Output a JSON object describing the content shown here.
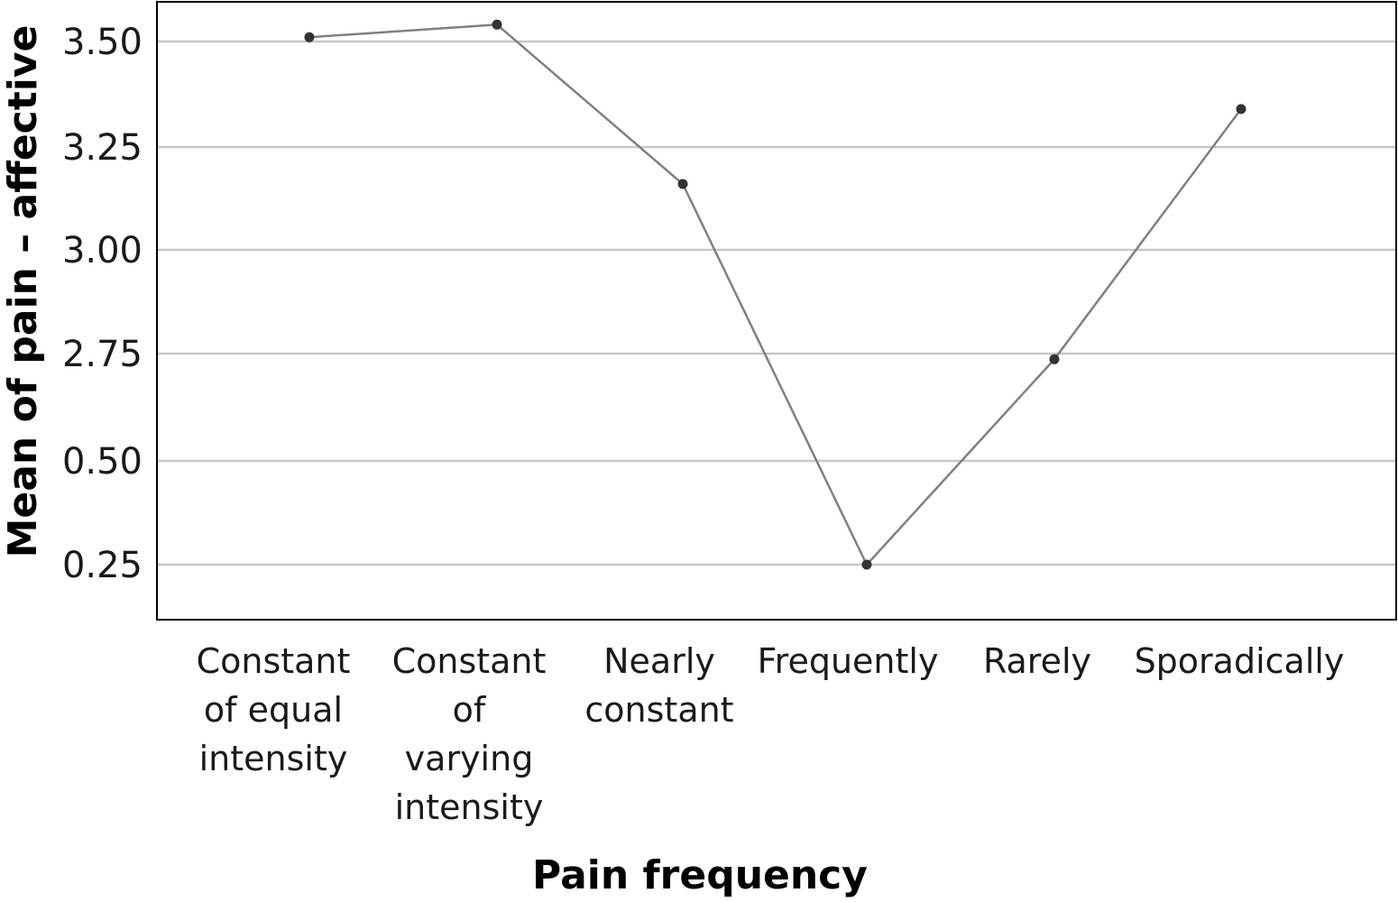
{
  "chart_data": {
    "type": "line",
    "xlabel": "Pain frequency",
    "ylabel": "Mean of pain – affective",
    "categories": [
      [
        "Constant",
        "of equal",
        "intensity"
      ],
      [
        "Constant",
        "of",
        "varying",
        "intensity"
      ],
      [
        "Nearly",
        "constant"
      ],
      [
        "Frequently"
      ],
      [
        "Rarely"
      ],
      [
        "Sporadically"
      ]
    ],
    "y_ticks": [
      0.25,
      0.5,
      2.75,
      3.0,
      3.25,
      3.5
    ],
    "y_tick_labels": [
      "0.25",
      "0.50",
      "2.75",
      "3.00",
      "3.25",
      "3.50"
    ],
    "values": [
      3.51,
      3.54,
      3.16,
      0.25,
      2.63,
      3.34
    ],
    "grid": true,
    "colors": {
      "line": "#808080",
      "marker": "#333333",
      "grid": "#c8c8c8",
      "frame": "#000000"
    }
  }
}
